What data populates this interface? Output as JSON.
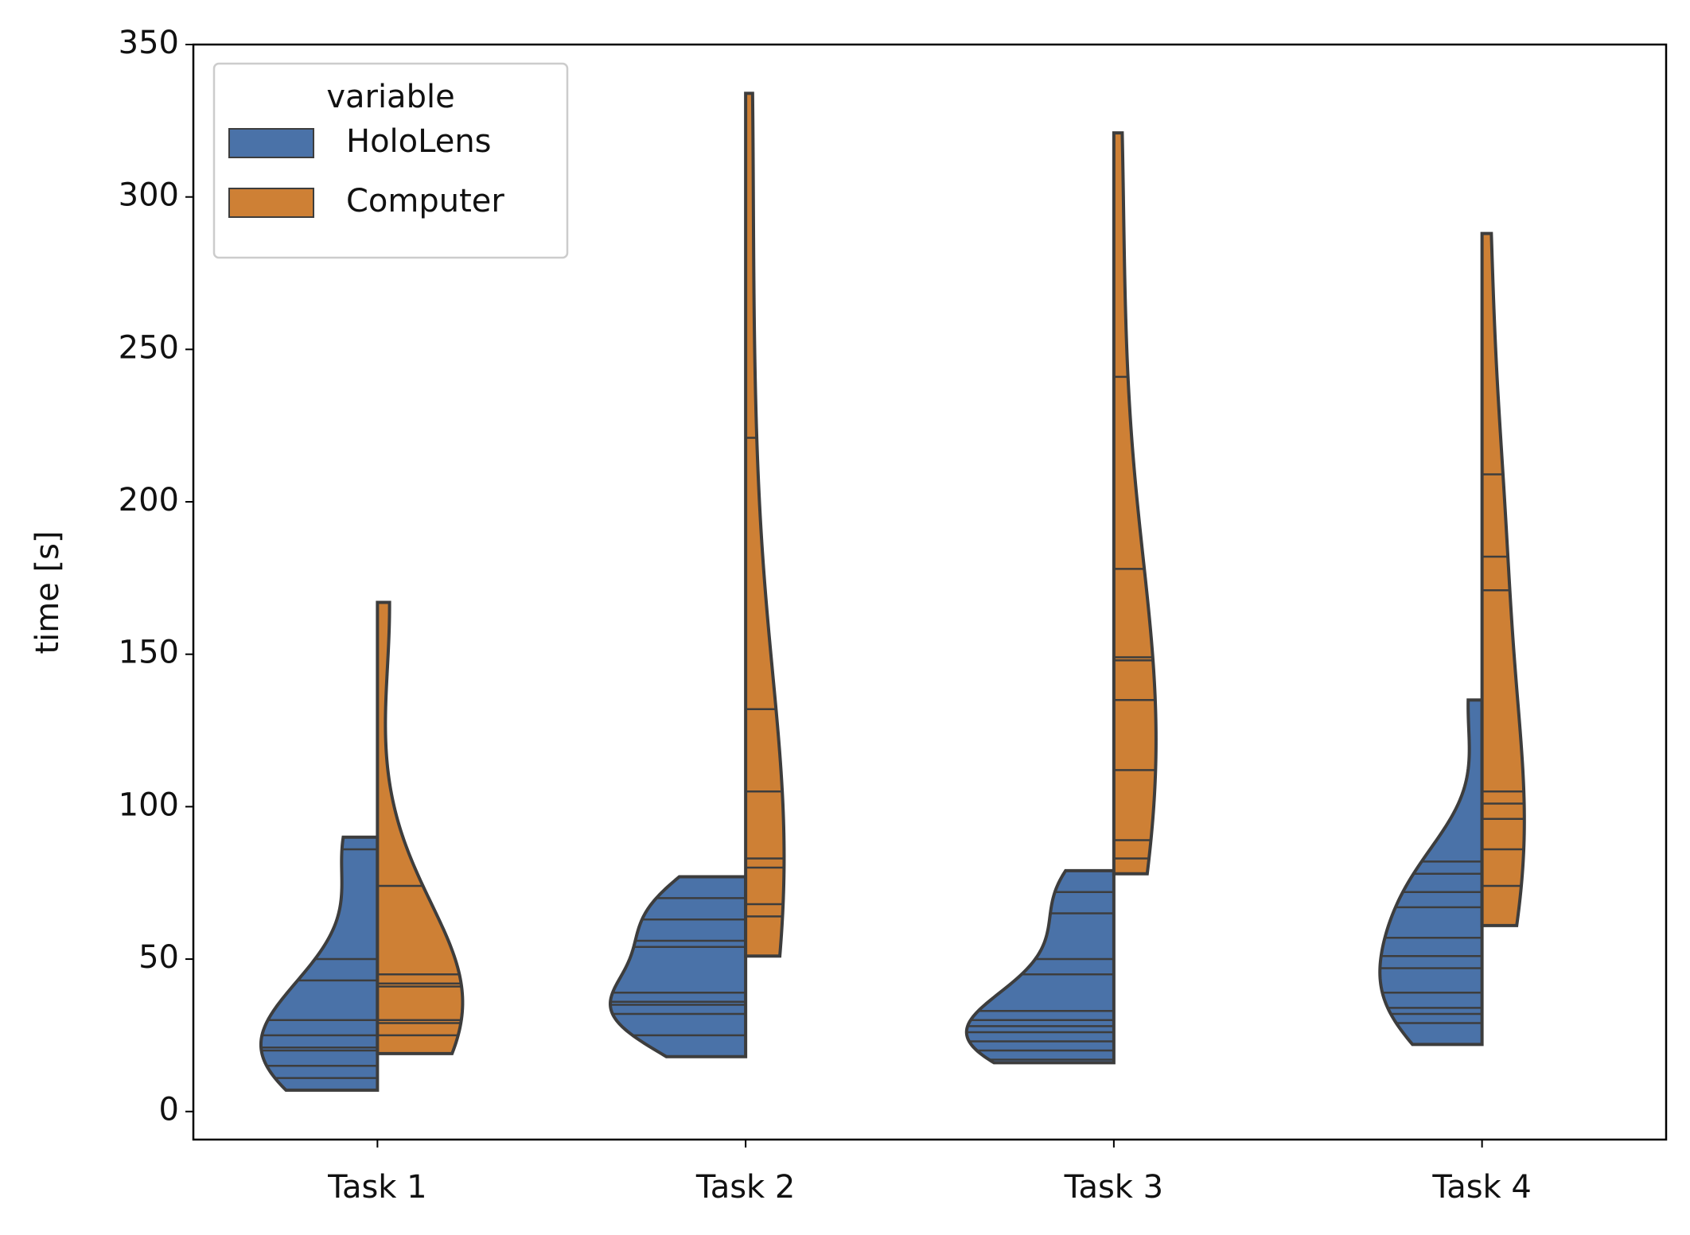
{
  "chart_data": {
    "type": "split-violin",
    "y_label": "time [s]",
    "categories": [
      "Task 1",
      "Task 2",
      "Task 3",
      "Task 4"
    ],
    "legend_title": "variable",
    "legend": "upper left",
    "series": [
      {
        "name": "HoloLens",
        "color": "#4a72a8",
        "values": [
          [
            7,
            11,
            15,
            20,
            21,
            25,
            30,
            43,
            50,
            86,
            90
          ],
          [
            18,
            25,
            32,
            35,
            36,
            39,
            54,
            56,
            63,
            70,
            77
          ],
          [
            16,
            17,
            20,
            23,
            26,
            28,
            30,
            33,
            45,
            50,
            65,
            72,
            79
          ],
          [
            22,
            29,
            32,
            34,
            39,
            47,
            51,
            57,
            67,
            72,
            78,
            82,
            135
          ]
        ]
      },
      {
        "name": "Computer",
        "color": "#ce8035",
        "values": [
          [
            19,
            25,
            29,
            30,
            41,
            42,
            45,
            74,
            167
          ],
          [
            51,
            64,
            68,
            80,
            83,
            105,
            132,
            221,
            334
          ],
          [
            78,
            83,
            89,
            112,
            135,
            148,
            149,
            178,
            241,
            321
          ],
          [
            61,
            74,
            86,
            96,
            101,
            105,
            171,
            182,
            209,
            288
          ]
        ]
      }
    ],
    "ylim": [
      -9.2,
      350
    ],
    "yticks": [
      0,
      50,
      100,
      150,
      200,
      250,
      300,
      350
    ]
  }
}
